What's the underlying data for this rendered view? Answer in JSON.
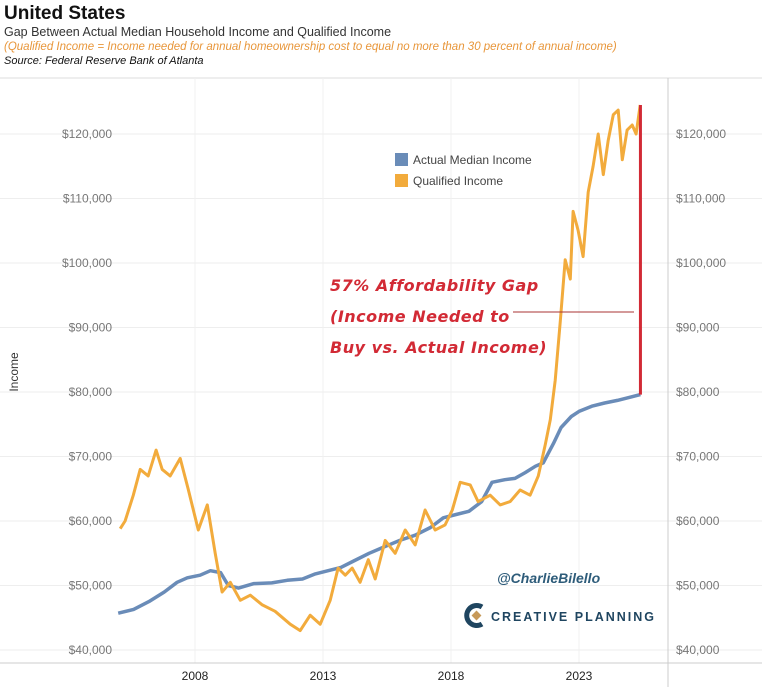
{
  "header": {
    "title": "United States",
    "subtitle": "Gap Between Actual Median Household Income and Qualified Income",
    "note": "(Qualified Income = Income needed for annual homeownership cost to equal no more than 30 percent of annual income)",
    "source": "Source: Federal Reserve Bank of Atlanta"
  },
  "chart_data": {
    "type": "line",
    "ylabel": "Income",
    "xlabel": "",
    "ylim": [
      39000,
      127000
    ],
    "xlim": [
      2004.9,
      2026.4
    ],
    "yticks": [
      40000,
      50000,
      60000,
      70000,
      80000,
      90000,
      100000,
      110000,
      120000
    ],
    "ytick_labels": [
      "$40,000",
      "$50,000",
      "$60,000",
      "$70,000",
      "$80,000",
      "$90,000",
      "$100,000",
      "$110,000",
      "$120,000"
    ],
    "xticks": [
      2008,
      2013,
      2018,
      2023
    ],
    "xtick_labels": [
      "2008",
      "2013",
      "2018",
      "2023"
    ],
    "grid": true,
    "legend_placement": "top-center",
    "series": [
      {
        "name": "Actual Median Income",
        "color": "#6a8cb8",
        "x": [
          2005.0,
          2005.6,
          2006.2,
          2006.8,
          2007.3,
          2007.7,
          2008.2,
          2008.6,
          2009.0,
          2009.3,
          2009.7,
          2010.3,
          2011.0,
          2011.6,
          2012.2,
          2012.7,
          2013.2,
          2013.7,
          2014.2,
          2014.8,
          2015.4,
          2016.0,
          2016.6,
          2017.2,
          2017.7,
          2018.2,
          2018.7,
          2019.2,
          2019.6,
          2020.1,
          2020.5,
          2020.9,
          2021.3,
          2021.6,
          2022.0,
          2022.3,
          2022.7,
          2023.0,
          2023.5,
          2024.0,
          2024.5,
          2025.0,
          2025.4
        ],
        "values": [
          45700,
          46300,
          47500,
          49000,
          50500,
          51200,
          51600,
          52300,
          52000,
          50000,
          49600,
          50300,
          50400,
          50800,
          51000,
          51800,
          52300,
          52800,
          53800,
          55000,
          56000,
          57000,
          57800,
          59000,
          60500,
          61000,
          61500,
          63000,
          66000,
          66400,
          66600,
          67500,
          68500,
          69000,
          72000,
          74500,
          76200,
          77000,
          77800,
          78300,
          78700,
          79200,
          79600
        ]
      },
      {
        "name": "Qualified Income",
        "color": "#f2ab3c",
        "x": [
          2005.08,
          2005.27,
          2005.59,
          2005.86,
          2006.17,
          2006.48,
          2006.72,
          2007.03,
          2007.42,
          2007.73,
          2008.13,
          2008.48,
          2008.79,
          2009.06,
          2009.38,
          2009.77,
          2010.16,
          2010.63,
          2011.13,
          2011.72,
          2012.11,
          2012.5,
          2012.89,
          2013.28,
          2013.59,
          2013.87,
          2014.14,
          2014.45,
          2014.77,
          2015.04,
          2015.43,
          2015.82,
          2016.21,
          2016.6,
          2016.99,
          2017.38,
          2017.77,
          2018.05,
          2018.36,
          2018.75,
          2019.06,
          2019.53,
          2019.92,
          2020.31,
          2020.7,
          2021.09,
          2021.41,
          2021.68,
          2021.88,
          2022.07,
          2022.27,
          2022.46,
          2022.66,
          2022.77,
          2022.97,
          2023.16,
          2023.36,
          2023.55,
          2023.75,
          2023.95,
          2024.14,
          2024.34,
          2024.53,
          2024.69,
          2024.88,
          2025.08,
          2025.23,
          2025.39
        ],
        "values": [
          58800,
          60000,
          64000,
          68000,
          67000,
          71000,
          68000,
          67000,
          69700,
          65000,
          58600,
          62500,
          55000,
          49000,
          50500,
          47700,
          48500,
          47000,
          46000,
          44000,
          43000,
          45400,
          44000,
          47700,
          52700,
          51600,
          52700,
          50500,
          54000,
          51000,
          57000,
          55000,
          58600,
          56300,
          61700,
          58600,
          59400,
          61700,
          66000,
          65600,
          63000,
          64000,
          62500,
          63000,
          64800,
          64000,
          67000,
          71800,
          75700,
          81800,
          91000,
          100500,
          97500,
          108000,
          105000,
          101000,
          111000,
          115000,
          120000,
          113700,
          119000,
          123000,
          123700,
          116000,
          120600,
          121400,
          120000,
          124500
        ]
      }
    ],
    "annotations": {
      "gap_lines": [
        "57% Affordability Gap",
        "(Income Needed to",
        "Buy vs. Actual Income)"
      ],
      "gap_color": "#d22a35",
      "gap_range": [
        79600,
        124500
      ],
      "gap_x": 2025.4
    }
  },
  "watermark": {
    "handle": "@CharlieBilello",
    "logo": "CREATIVE PLANNING"
  }
}
